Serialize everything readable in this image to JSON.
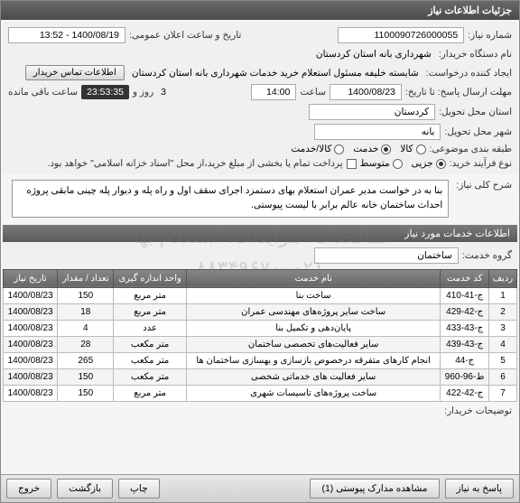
{
  "window": {
    "title": "جزئیات اطلاعات نیاز"
  },
  "form": {
    "need_no_label": "شماره نیاز:",
    "need_no": "1100090726000055",
    "announce_label": "تاریخ و ساعت اعلان عمومی:",
    "announce_value": "1400/08/19 - 13:52",
    "buyer_label": "نام دستگاه خریدار:",
    "buyer_value": "شهرداری بانه استان کردستان",
    "creator_label": "ایجاد کننده درخواست:",
    "creator_value": "شایسته خلیفه مسئول استعلام خرید خدمات شهرداری بانه استان کردستان",
    "contact_btn": "اطلاعات تماس خریدار",
    "deadline_label": "مهلت ارسال پاسخ: تا تاریخ:",
    "deadline_date": "1400/08/23",
    "time_label": "ساعت",
    "deadline_time": "14:00",
    "days_val": "3",
    "days_label": "روز و",
    "countdown": "23:53:35",
    "remain_label": "ساعت باقی مانده",
    "province_label": "استان محل تحویل:",
    "province_value": "کردستان",
    "city_label": "شهر محل تحویل:",
    "city_value": "بانه",
    "subject_type_label": "طبقه بندی موضوعی:",
    "r_goods": "کالا",
    "r_service": "خدمت",
    "r_both": "کالا/خدمت",
    "process_label": "نوع فرآیند خرید:",
    "r_small": "جزیی",
    "r_medium": "متوسط",
    "pay_note": "پرداخت تمام یا بخشی از مبلغ خرید،از محل \"اسناد خزانه اسلامی\" خواهد بود.",
    "desc_label": "شرح کلی نیاز:",
    "desc_text": "بنا به در خواست مدیر عمران استعلام بهای دستمزد اجرای سقف اول و راه پله و دیوار پله چینی مابقی پروژه احداث ساختمان خانه عالم برابر با لیست پیوستی."
  },
  "services": {
    "header": "اطلاعات خدمات مورد نیاز",
    "group_label": "گروه خدمت:",
    "group_value": "ساختمان",
    "columns": [
      "ردیف",
      "کد خدمت",
      "نام خدمت",
      "واحد اندازه گیری",
      "تعداد / مقدار",
      "تاریخ نیاز"
    ],
    "rows": [
      [
        "1",
        "ج-41-410",
        "ساخت بنا",
        "متر مربع",
        "150",
        "1400/08/23"
      ],
      [
        "2",
        "ج-42-429",
        "ساخت سایر پروژه‌های مهندسی عمران",
        "متر مربع",
        "18",
        "1400/08/23"
      ],
      [
        "3",
        "ج-43-433",
        "پایان‌دهی و تکمیل بنا",
        "عدد",
        "4",
        "1400/08/23"
      ],
      [
        "4",
        "ج-43-439",
        "سایر فعالیت‌های تخصصی ساختمان",
        "متر مکعب",
        "28",
        "1400/08/23"
      ],
      [
        "5",
        "ج-44",
        "انجام کارهای متفرقه درخصوص بازسازی و بهسازی ساختمان ها",
        "متر مکعب",
        "265",
        "1400/08/23"
      ],
      [
        "6",
        "ط-96-960",
        "سایر فعالیت های خدماتی شخصی",
        "متر مکعب",
        "150",
        "1400/08/23"
      ],
      [
        "7",
        "ج-42-422",
        "ساخت پروژه‌های تاسیسات شهری",
        "متر مربع",
        "150",
        "1400/08/23"
      ]
    ]
  },
  "buyer_notes_label": "توضیحات خریدار:",
  "footer": {
    "respond": "پاسخ به نیاز",
    "attach": "مشاهده مدارک پیوستی (1)",
    "print": "چاپ",
    "back": "بازگشت",
    "exit": "خروج"
  },
  "watermark_l1": "مناقصات، مزایدات، استعلام بها",
  "watermark_l2": "۰۲۱–۸۸۳۴۹۶۷۰"
}
